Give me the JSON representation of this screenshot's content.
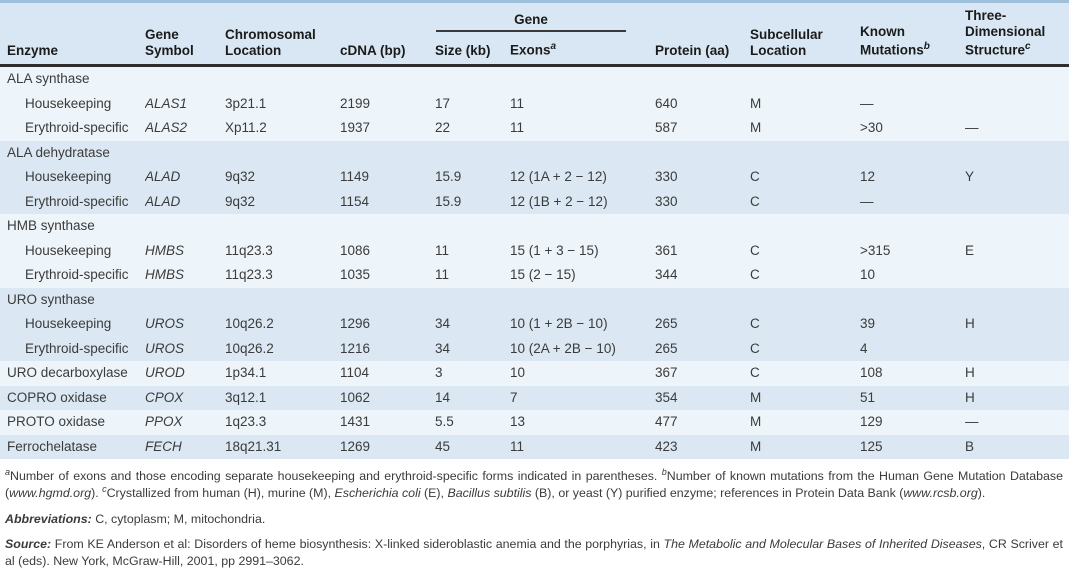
{
  "table": {
    "header": {
      "enzyme": "Enzyme",
      "gene_symbol": "Gene Symbol",
      "chromosomal_location": "Chromosomal Location",
      "cdna": "cDNA (bp)",
      "gene_group": "Gene",
      "size": "Size (kb)",
      "exons": "Exons",
      "exons_sup": "a",
      "protein": "Protein (aa)",
      "subcellular": "Subcellular Location",
      "mutations": "Known Mutations",
      "mutations_sup": "b",
      "structure": "Three-Dimensional Structure",
      "structure_sup": "c"
    },
    "rows": [
      {
        "type": "group",
        "band": "light",
        "enzyme": "ALA synthase"
      },
      {
        "type": "data",
        "band": "light",
        "indent": true,
        "enzyme": "Housekeeping",
        "gene_symbol": "ALAS1",
        "location": "3p21.1",
        "cdna": "2199",
        "size": "17",
        "exons": "11",
        "protein": "640",
        "subcellular": "M",
        "mutations": "—",
        "structure": ""
      },
      {
        "type": "data",
        "band": "light",
        "indent": true,
        "enzyme": "Erythroid-specific",
        "gene_symbol": "ALAS2",
        "location": "Xp11.2",
        "cdna": "1937",
        "size": "22",
        "exons": "11",
        "protein": "587",
        "subcellular": "M",
        "mutations": ">30",
        "structure": "—"
      },
      {
        "type": "group",
        "band": "dark",
        "enzyme": "ALA dehydratase"
      },
      {
        "type": "data",
        "band": "dark",
        "indent": true,
        "enzyme": "Housekeeping",
        "gene_symbol": "ALAD",
        "location": "9q32",
        "cdna": "1149",
        "size": "15.9",
        "exons": "12 (1A + 2 − 12)",
        "protein": "330",
        "subcellular": "C",
        "mutations": "12",
        "structure": "Y"
      },
      {
        "type": "data",
        "band": "dark",
        "indent": true,
        "enzyme": "Erythroid-specific",
        "gene_symbol": "ALAD",
        "location": "9q32",
        "cdna": "1154",
        "size": "15.9",
        "exons": "12 (1B + 2 − 12)",
        "protein": "330",
        "subcellular": "C",
        "mutations": "—",
        "structure": ""
      },
      {
        "type": "group",
        "band": "light",
        "enzyme": "HMB synthase"
      },
      {
        "type": "data",
        "band": "light",
        "indent": true,
        "enzyme": "Housekeeping",
        "gene_symbol": "HMBS",
        "location": "11q23.3",
        "cdna": "1086",
        "size": "11",
        "exons": "15 (1 + 3 − 15)",
        "protein": "361",
        "subcellular": "C",
        "mutations": ">315",
        "structure": "E"
      },
      {
        "type": "data",
        "band": "light",
        "indent": true,
        "enzyme": "Erythroid-specific",
        "gene_symbol": "HMBS",
        "location": "11q23.3",
        "cdna": "1035",
        "size": "11",
        "exons": "15 (2 − 15)",
        "protein": "344",
        "subcellular": "C",
        "mutations": "10",
        "structure": ""
      },
      {
        "type": "group",
        "band": "dark",
        "enzyme": "URO synthase"
      },
      {
        "type": "data",
        "band": "dark",
        "indent": true,
        "enzyme": "Housekeeping",
        "gene_symbol": "UROS",
        "location": "10q26.2",
        "cdna": "1296",
        "size": "34",
        "exons": "10 (1 + 2B − 10)",
        "protein": "265",
        "subcellular": "C",
        "mutations": "39",
        "structure": "H"
      },
      {
        "type": "data",
        "band": "dark",
        "indent": true,
        "enzyme": "Erythroid-specific",
        "gene_symbol": "UROS",
        "location": "10q26.2",
        "cdna": "1216",
        "size": "34",
        "exons": "10 (2A + 2B − 10)",
        "protein": "265",
        "subcellular": "C",
        "mutations": "4",
        "structure": ""
      },
      {
        "type": "data",
        "band": "light",
        "indent": false,
        "enzyme": "URO decarboxylase",
        "gene_symbol": "UROD",
        "location": "1p34.1",
        "cdna": "1104",
        "size": "3",
        "exons": "10",
        "protein": "367",
        "subcellular": "C",
        "mutations": "108",
        "structure": "H"
      },
      {
        "type": "data",
        "band": "dark",
        "indent": false,
        "enzyme": "COPRO oxidase",
        "gene_symbol": "CPOX",
        "location": "3q12.1",
        "cdna": "1062",
        "size": "14",
        "exons": "7",
        "protein": "354",
        "subcellular": "M",
        "mutations": "51",
        "structure": "H"
      },
      {
        "type": "data",
        "band": "light",
        "indent": false,
        "enzyme": "PROTO oxidase",
        "gene_symbol": "PPOX",
        "location": "1q23.3",
        "cdna": "1431",
        "size": "5.5",
        "exons": "13",
        "protein": "477",
        "subcellular": "M",
        "mutations": "129",
        "structure": "—"
      },
      {
        "type": "data",
        "band": "dark",
        "indent": false,
        "enzyme": "Ferrochelatase",
        "gene_symbol": "FECH",
        "location": "18q21.31",
        "cdna": "1269",
        "size": "45",
        "exons": "11",
        "protein": "423",
        "subcellular": "M",
        "mutations": "125",
        "structure": "B"
      }
    ]
  },
  "footnotes": {
    "exons_note": [
      {
        "t": "a",
        "sup": true,
        "italic": true
      },
      {
        "t": "Number of exons and those encoding separate housekeeping and erythroid-specific forms indicated in parentheses.  "
      },
      {
        "t": "b",
        "sup": true,
        "italic": true
      },
      {
        "t": "Number of known mutations from the Human Gene Mutation Database ("
      },
      {
        "t": "www.hgmd.org",
        "italic": true
      },
      {
        "t": ").  "
      },
      {
        "t": "c",
        "sup": true,
        "italic": true
      },
      {
        "t": "Crystallized from human (H), murine (M), "
      },
      {
        "t": "Escherichia coli",
        "italic": true
      },
      {
        "t": " (E), "
      },
      {
        "t": "Bacillus subtilis",
        "italic": true
      },
      {
        "t": " (B), or yeast (Y) purified enzyme; references in Protein Data Bank ("
      },
      {
        "t": "www.rcsb.org",
        "italic": true
      },
      {
        "t": ")."
      }
    ],
    "abbreviations": [
      {
        "t": "Abbreviations:",
        "bold": true,
        "italic": true
      },
      {
        "t": " C, cytoplasm; M, mitochondria."
      }
    ],
    "source": [
      {
        "t": "Source:",
        "bold": true,
        "italic": true
      },
      {
        "t": " From KE Anderson et al: Disorders of heme biosynthesis: X-linked sideroblastic anemia and the porphyrias, in "
      },
      {
        "t": "The Metabolic and Molecular Bases of Inherited Diseases",
        "italic": true
      },
      {
        "t": ", CR Scriver et al (eds). New York, McGraw-Hill, 2001, pp 2991–3062."
      }
    ]
  },
  "colors": {
    "header_bg": "#d8e7f3",
    "band_light": "#eef5fa",
    "band_dark": "#dbe8f3",
    "top_border": "#9fc0da",
    "header_rule": "#2e2e2e"
  }
}
